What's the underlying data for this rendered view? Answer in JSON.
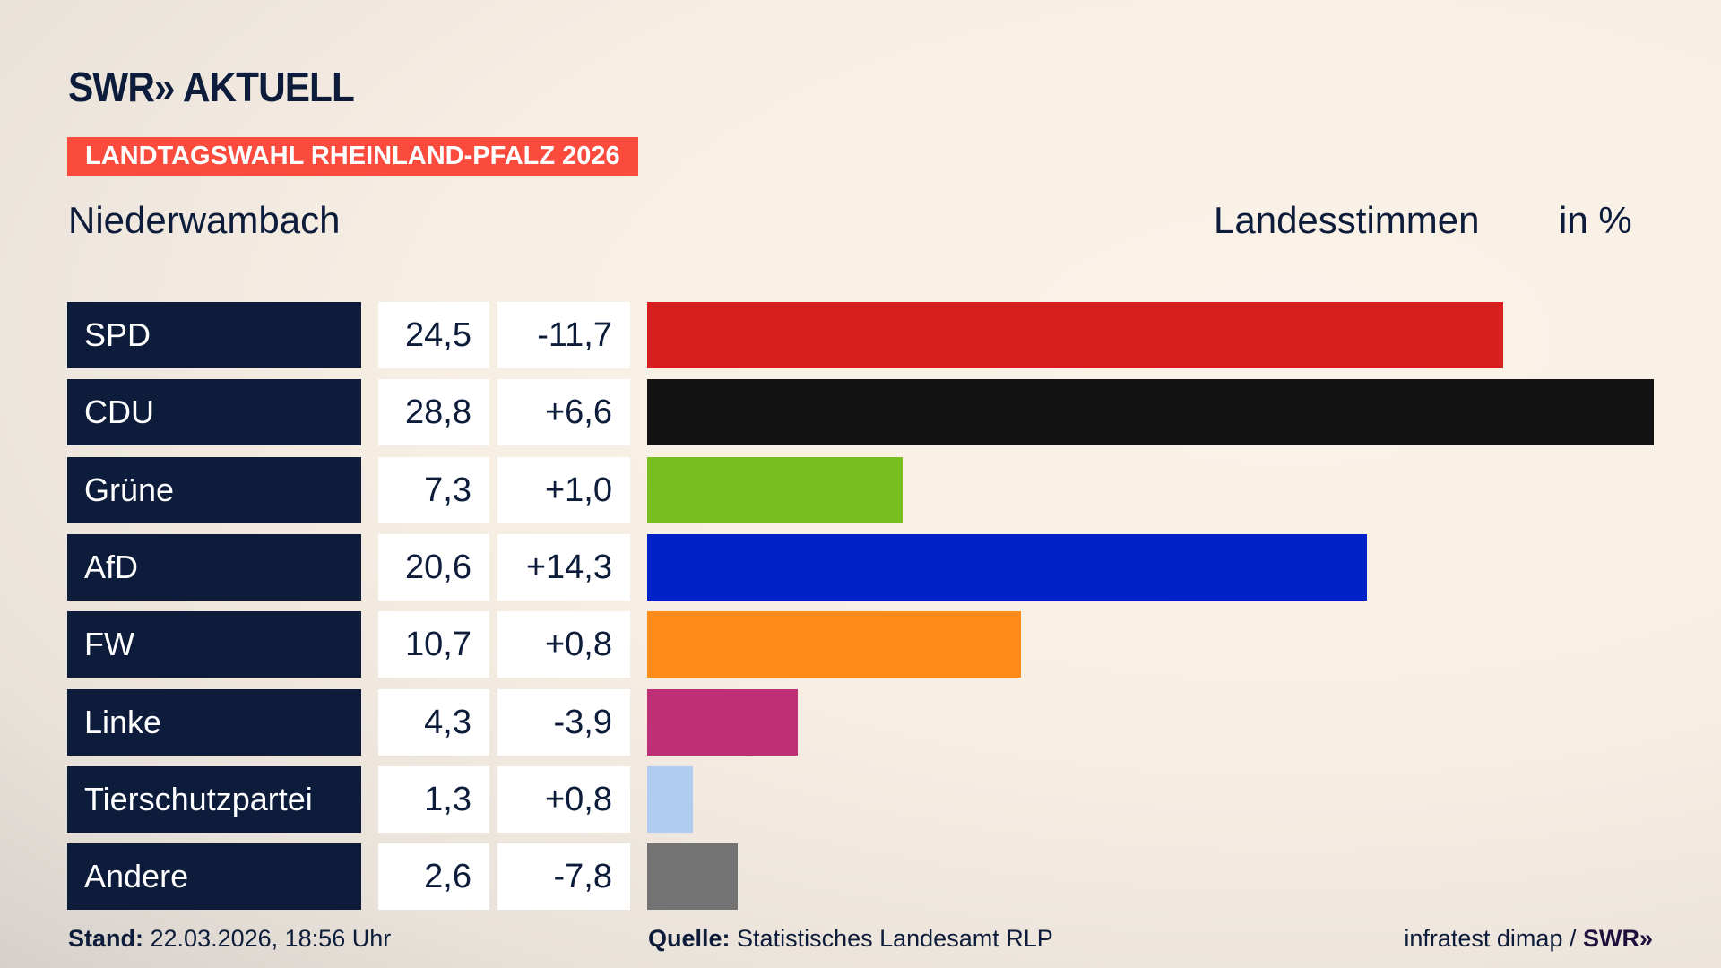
{
  "header": {
    "logo": "SWR» AKTUELL",
    "banner": "LANDTAGSWAHL RHEINLAND-PFALZ 2026",
    "place": "Niederwambach",
    "votes_label": "Landesstimmen",
    "unit": "in %"
  },
  "chart_data": {
    "type": "bar",
    "orientation": "horizontal",
    "categories": [
      "SPD",
      "CDU",
      "Grüne",
      "AfD",
      "FW",
      "Linke",
      "Tierschutzpartei",
      "Andere"
    ],
    "values": [
      24.5,
      28.8,
      7.3,
      20.6,
      10.7,
      4.3,
      1.3,
      2.6
    ],
    "value_labels": [
      "24,5",
      "28,8",
      "7,3",
      "20,6",
      "10,7",
      "4,3",
      "1,3",
      "2,6"
    ],
    "diff_labels": [
      "-11,7",
      "+6,6",
      "+1,0",
      "+14,3",
      "+0,8",
      "-3,9",
      "+0,8",
      "-7,8"
    ],
    "colors": [
      "#d71f1f",
      "#121212",
      "#78be1e",
      "#0022c8",
      "#ff8c1a",
      "#be3075",
      "#b0ccf0",
      "#737373"
    ],
    "xlim": [
      0,
      28.8
    ],
    "grid": false
  },
  "footer": {
    "stand_label": "Stand:",
    "stand_value": "22.03.2026, 18:56 Uhr",
    "source_label": "Quelle:",
    "source_value": "Statistisches Landesamt RLP",
    "credit": "infratest dimap /",
    "credit_logo": "SWR»"
  }
}
